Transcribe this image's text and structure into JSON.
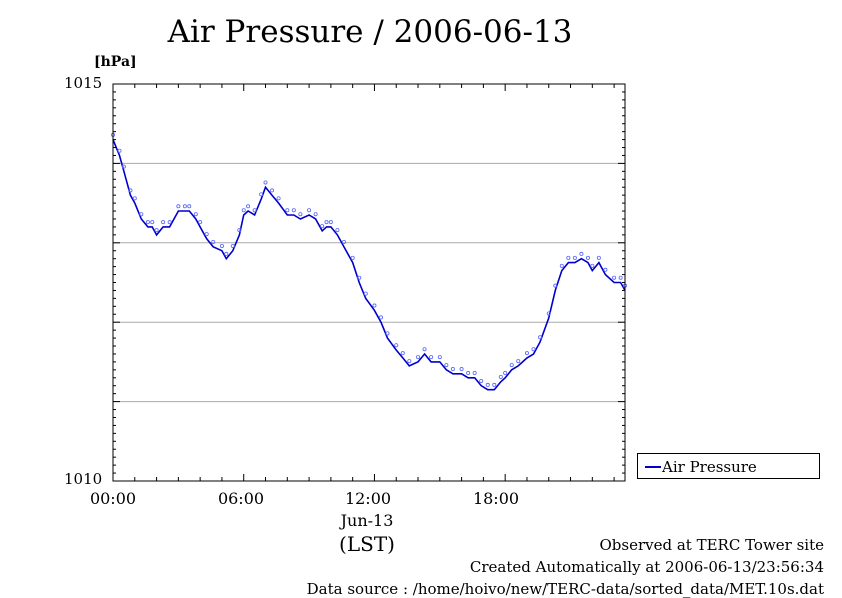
{
  "chart_data": {
    "type": "line",
    "title": "Air Pressure / 2006-06-13",
    "ylabel": "[hPa]",
    "ylim": [
      1010,
      1015
    ],
    "xlim": [
      0,
      23.5
    ],
    "ytick_labels": [
      "1015",
      "1010"
    ],
    "yticks": [
      1015,
      1010
    ],
    "y_gridlines": [
      1014,
      1013,
      1012,
      1011
    ],
    "x_ticks": [
      0,
      6,
      12,
      18
    ],
    "x_tick_labels": [
      "00:00",
      "06:00",
      "12:00",
      "18:00"
    ],
    "x_date_label": "Jun-13",
    "x_unit_label": "(LST)",
    "grid": true,
    "legend": {
      "position": "right",
      "entries": [
        "Air Pressure"
      ]
    },
    "series": [
      {
        "name": "Air Pressure",
        "color": "#0000cc",
        "marker_color": "#5566ff",
        "x": [
          0,
          0.3,
          0.5,
          0.8,
          1.0,
          1.3,
          1.6,
          1.8,
          2.0,
          2.3,
          2.6,
          3.0,
          3.3,
          3.5,
          3.8,
          4.0,
          4.3,
          4.6,
          5.0,
          5.2,
          5.5,
          5.8,
          6.0,
          6.2,
          6.5,
          6.8,
          7.0,
          7.3,
          7.6,
          8.0,
          8.3,
          8.6,
          9.0,
          9.3,
          9.6,
          9.8,
          10.0,
          10.3,
          10.6,
          11.0,
          11.3,
          11.6,
          12.0,
          12.3,
          12.6,
          13.0,
          13.3,
          13.6,
          14.0,
          14.3,
          14.6,
          15.0,
          15.3,
          15.6,
          16.0,
          16.3,
          16.6,
          16.9,
          17.2,
          17.5,
          17.8,
          18.0,
          18.3,
          18.6,
          19.0,
          19.3,
          19.6,
          20.0,
          20.3,
          20.6,
          20.9,
          21.2,
          21.5,
          21.8,
          22.0,
          22.3,
          22.6,
          23.0,
          23.3,
          23.5
        ],
        "y": [
          1014.3,
          1014.1,
          1013.9,
          1013.6,
          1013.5,
          1013.3,
          1013.2,
          1013.2,
          1013.1,
          1013.2,
          1013.2,
          1013.4,
          1013.4,
          1013.4,
          1013.3,
          1013.2,
          1013.05,
          1012.95,
          1012.9,
          1012.8,
          1012.9,
          1013.1,
          1013.35,
          1013.4,
          1013.35,
          1013.55,
          1013.7,
          1013.6,
          1013.5,
          1013.35,
          1013.35,
          1013.3,
          1013.35,
          1013.3,
          1013.15,
          1013.2,
          1013.2,
          1013.1,
          1012.95,
          1012.75,
          1012.5,
          1012.3,
          1012.15,
          1012.0,
          1011.8,
          1011.65,
          1011.55,
          1011.45,
          1011.5,
          1011.6,
          1011.5,
          1011.5,
          1011.4,
          1011.35,
          1011.35,
          1011.3,
          1011.3,
          1011.2,
          1011.15,
          1011.15,
          1011.25,
          1011.3,
          1011.4,
          1011.45,
          1011.55,
          1011.6,
          1011.75,
          1012.05,
          1012.4,
          1012.65,
          1012.75,
          1012.75,
          1012.8,
          1012.75,
          1012.65,
          1012.75,
          1012.6,
          1012.5,
          1012.5,
          1012.4
        ]
      }
    ]
  },
  "footer": {
    "observed": "Observed at TERC Tower site",
    "created": "Created Automatically at 2006-06-13/23:56:34",
    "source": "Data source : /home/hoivo/new/TERC-data/sorted_data/MET.10s.dat"
  }
}
